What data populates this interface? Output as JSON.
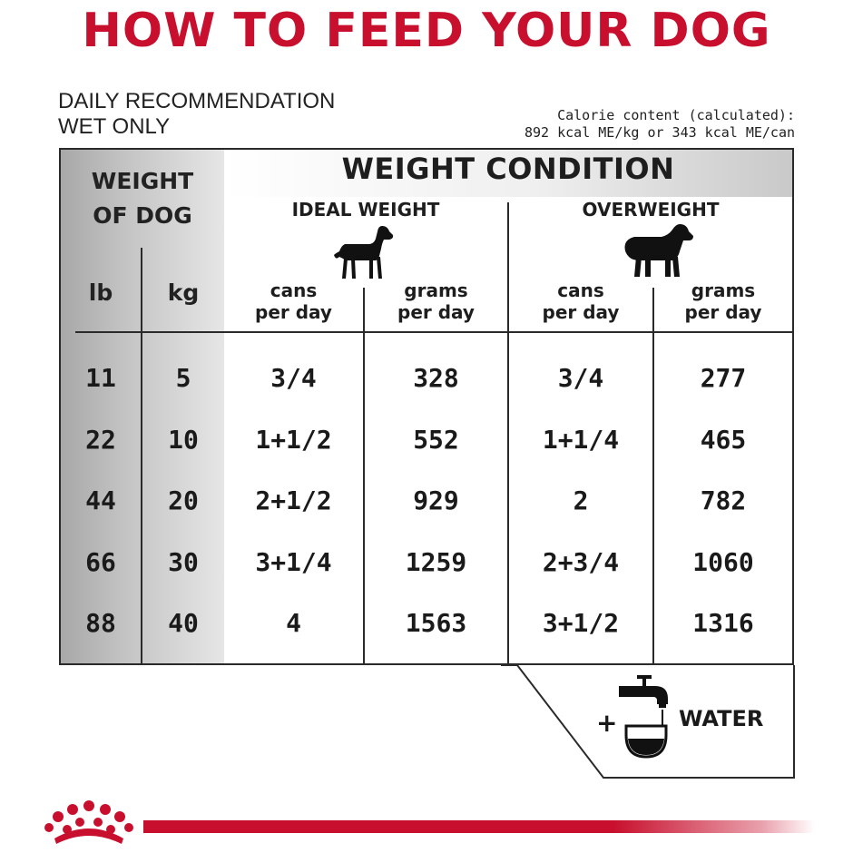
{
  "title": "HOW TO FEED YOUR DOG",
  "subtitle_line1": "DAILY RECOMMENDATION",
  "subtitle_line2": "WET ONLY",
  "calorie_line1": "Calorie content (calculated):",
  "calorie_line2": "892 kcal ME/kg or 343 kcal ME/can",
  "table": {
    "weight_header_line1": "WEIGHT",
    "weight_header_line2": "OF DOG",
    "condition_header": "WEIGHT CONDITION",
    "group_ideal": "IDEAL WEIGHT",
    "group_over": "OVERWEIGHT",
    "unit_lb": "lb",
    "unit_kg": "kg",
    "col_cans_1": "cans",
    "col_cans_2": "per day",
    "col_grams_1": "grams",
    "col_grams_2": "per day",
    "rows": [
      {
        "lb": "11",
        "kg": "5",
        "ideal_cans": "3/4",
        "ideal_grams": "328",
        "over_cans": "3/4",
        "over_grams": "277"
      },
      {
        "lb": "22",
        "kg": "10",
        "ideal_cans": "1+1/2",
        "ideal_grams": "552",
        "over_cans": "1+1/4",
        "over_grams": "465"
      },
      {
        "lb": "44",
        "kg": "20",
        "ideal_cans": "2+1/2",
        "ideal_grams": "929",
        "over_cans": "2",
        "over_grams": "782"
      },
      {
        "lb": "66",
        "kg": "30",
        "ideal_cans": "3+1/4",
        "ideal_grams": "1259",
        "over_cans": "2+3/4",
        "over_grams": "1060"
      },
      {
        "lb": "88",
        "kg": "40",
        "ideal_cans": "4",
        "ideal_grams": "1563",
        "over_cans": "3+1/2",
        "over_grams": "1316"
      }
    ]
  },
  "water": {
    "plus": "+",
    "label": "WATER"
  },
  "icons": [
    "dog-ideal-icon",
    "dog-overweight-icon",
    "faucet-bowl-icon",
    "royal-canin-crown-logo"
  ],
  "colors": {
    "brand_red": "#c8102e",
    "text": "#1a1a1a"
  }
}
